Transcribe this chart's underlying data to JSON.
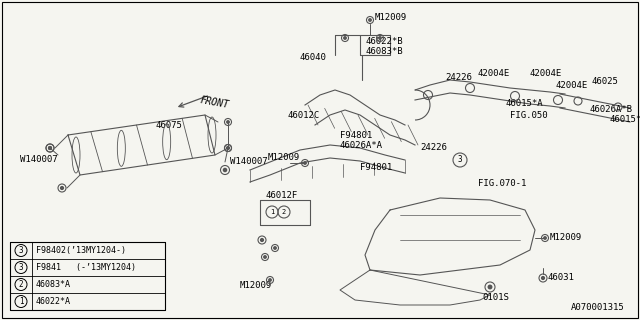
{
  "background_color": "#f5f5f0",
  "line_color": "#555555",
  "text_color": "#000000",
  "watermark": "A070001315",
  "legend_items": [
    {
      "num": "1",
      "text": "46022*A"
    },
    {
      "num": "2",
      "text": "46083*A"
    },
    {
      "num": "3",
      "text": "F9841   (-’13MY1204)"
    },
    {
      "num": "3",
      "text": "F98402(’13MY1204-)"
    }
  ]
}
